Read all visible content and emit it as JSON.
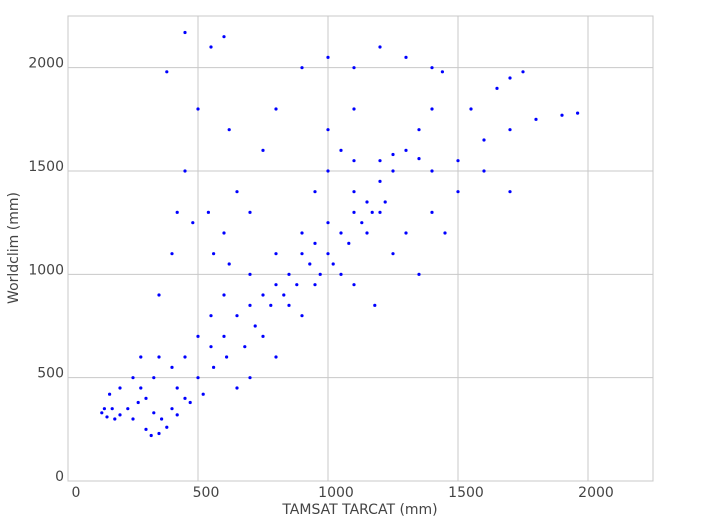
{
  "chart_data": {
    "type": "scatter",
    "xlabel": "TAMSAT TARCAT (mm)",
    "ylabel": "Worldclim (mm)",
    "color": "#0000ff",
    "grid": true,
    "xlim": [
      0,
      2250
    ],
    "ylim": [
      0,
      2250
    ],
    "xticks": [
      0,
      500,
      1000,
      1500,
      2000
    ],
    "yticks": [
      0,
      500,
      1000,
      1500,
      2000
    ],
    "x": [
      130,
      150,
      170,
      200,
      160,
      250,
      300,
      320,
      350,
      380,
      300,
      330,
      350,
      280,
      400,
      420,
      450,
      400,
      450,
      500,
      500,
      550,
      600,
      550,
      600,
      650,
      700,
      700,
      750,
      800,
      800,
      850,
      900,
      900,
      950,
      1000,
      1000,
      1050,
      1100,
      1100,
      1150,
      1200,
      1200,
      1250,
      1150,
      1180,
      1100,
      1050,
      450,
      500,
      550,
      600,
      620,
      650,
      700,
      750,
      800,
      900,
      1000,
      1100,
      1200,
      1300,
      1400,
      1440,
      1400,
      1350,
      1300,
      1400,
      1500,
      1600,
      1700,
      1800,
      1900,
      1960,
      1650,
      1700,
      1750,
      1500,
      1450,
      1400,
      1300,
      1250,
      1350,
      800,
      700,
      650,
      900,
      400,
      350,
      420,
      480,
      560,
      380,
      450,
      540,
      600,
      620,
      750,
      850,
      950,
      1000,
      950,
      1100,
      1200,
      1250,
      1350,
      1600,
      1700,
      1550,
      1100,
      1000,
      1050,
      250,
      280,
      230,
      140,
      180,
      200,
      270,
      330,
      360,
      420,
      470,
      520,
      560,
      610,
      680,
      720,
      780,
      830,
      880,
      930,
      970,
      1020,
      1080,
      1130,
      1170,
      1220
    ],
    "values": [
      330,
      310,
      350,
      320,
      420,
      300,
      250,
      220,
      230,
      260,
      400,
      500,
      600,
      450,
      350,
      450,
      400,
      550,
      600,
      500,
      700,
      650,
      700,
      800,
      900,
      800,
      850,
      1000,
      900,
      950,
      1100,
      1000,
      1100,
      1200,
      1150,
      1250,
      1100,
      1200,
      1300,
      1400,
      1350,
      1300,
      1450,
      1500,
      1200,
      850,
      950,
      1000,
      1500,
      1800,
      2100,
      2150,
      1700,
      1400,
      1300,
      1600,
      1800,
      2000,
      2050,
      2000,
      2100,
      2050,
      2000,
      1980,
      1800,
      1700,
      1600,
      1500,
      1550,
      1650,
      1700,
      1750,
      1770,
      1780,
      1900,
      1950,
      1980,
      1400,
      1200,
      1300,
      1200,
      1100,
      1000,
      600,
      500,
      450,
      800,
      1100,
      900,
      1300,
      1250,
      1100,
      1980,
      2170,
      1300,
      1200,
      1050,
      700,
      850,
      950,
      1500,
      1400,
      1550,
      1550,
      1580,
      1560,
      1500,
      1400,
      1800,
      1800,
      1700,
      1600,
      500,
      600,
      350,
      350,
      300,
      450,
      380,
      330,
      300,
      320,
      380,
      420,
      550,
      600,
      650,
      750,
      850,
      900,
      950,
      1050,
      1000,
      1050,
      1150,
      1250,
      1300,
      1350
    ]
  }
}
